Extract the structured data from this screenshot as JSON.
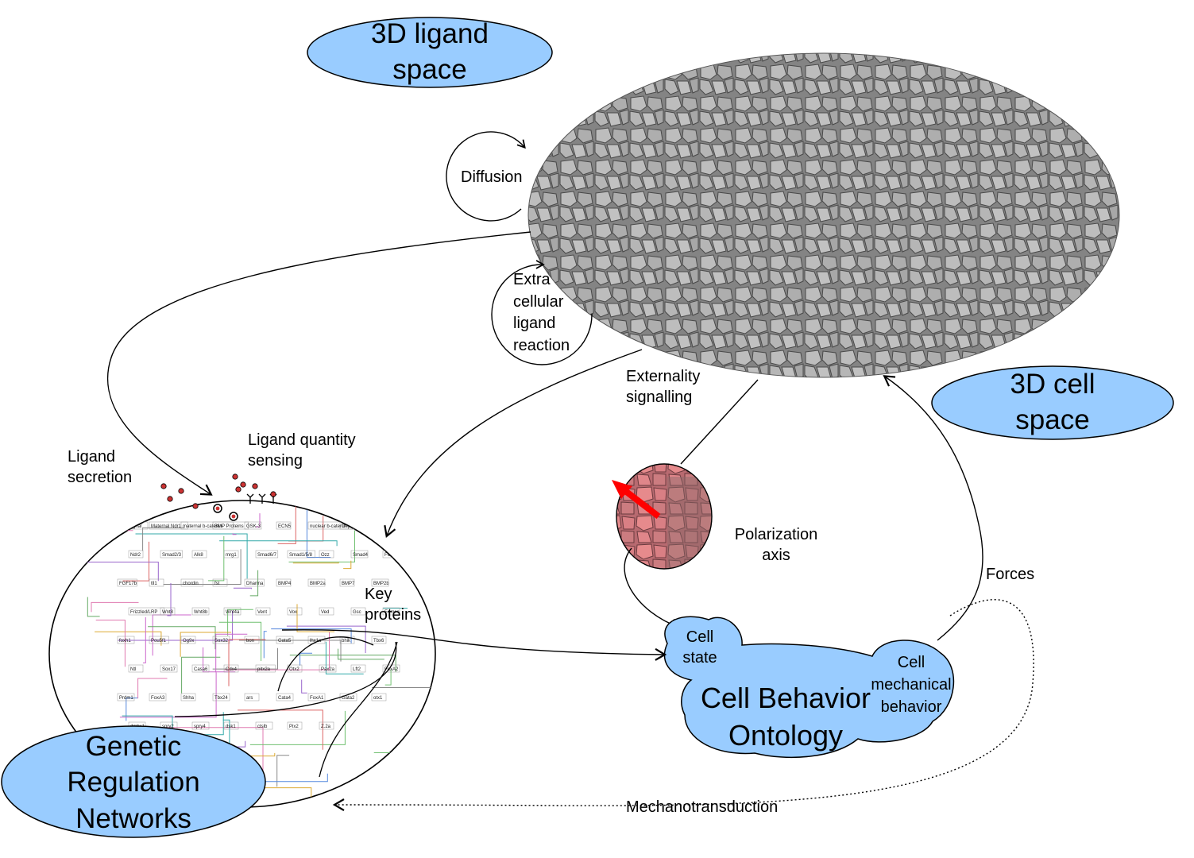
{
  "titles": {
    "ligand_space": "3D ligand\nspace",
    "cell_space": "3D cell\nspace",
    "grn": "Genetic\nRegulation\nNetworks",
    "cbo": "Cell Behavior\nOntology"
  },
  "labels": {
    "diffusion": "Diffusion",
    "extracellular": "Extra\ncellular\nligand\nreaction",
    "externality": "Externality\nsignalling",
    "ligand_secretion": "Ligand\nsecretion",
    "ligand_sensing": "Ligand quantity\nsensing",
    "key_proteins": "Key\nproteins",
    "polarization": "Polarization\naxis",
    "forces": "Forces",
    "mechanotransduction": "Mechanotransduction",
    "cell_state": "Cell\nstate",
    "cell_mechanical": "Cell\nmechanical\nbehavior"
  },
  "network_labels": [
    "YSL signal",
    "Maternal Ndr1",
    "maternal b-catenin",
    "BMP Proteins",
    "GSK-3",
    "ECN5",
    "nuclear b-catenin-TCF",
    "Oep",
    "Ndr1",
    "Ndr2",
    "Smad2/3",
    "Alk8",
    "mrg1",
    "Smad6/7",
    "Smad1/5/8",
    "Ozz",
    "Smad4",
    "FGF",
    "FGF17b",
    "tll1",
    "chordin",
    "fst",
    "Dharma",
    "BMP4",
    "BMP2a",
    "BMP7",
    "BMP2b",
    "Frizzled/LRP",
    "Wnt8",
    "Wnt8b",
    "Wnt4a",
    "Vent",
    "Vox",
    "Ved",
    "Gsc",
    "Eomes",
    "foxh1",
    "Pou5f1",
    "Og9x",
    "Sox32",
    "bon",
    "Gata5",
    "lhx1a",
    "bhik",
    "Tbx6",
    "Ntl",
    "Sox17",
    "Casa6",
    "Cdx4",
    "pitx2a",
    "Otx2",
    "Pax2a",
    "Lft2",
    "FoxA2",
    "Prdm1",
    "FoxA3",
    "Shha",
    "Tbx24",
    "ars",
    "Cata4",
    "FoxA1",
    "Gata2",
    "otx1",
    "dmbx1",
    "spry2",
    "spry4",
    "dsk1",
    "ctslb",
    "Pix2",
    "Z.2a"
  ],
  "colors": {
    "ellipse_fill": "#99ccff",
    "ellipse_stroke": "#000000",
    "tissue_gray": "#8a8a8a",
    "polar_pink": "#d88080",
    "arrow_red": "#ff0000",
    "ligand_dot": "#cc3333"
  },
  "icons": [
    "arrowhead",
    "receptor-icon",
    "ligand-dot-icon",
    "polarity-arrow-icon"
  ]
}
